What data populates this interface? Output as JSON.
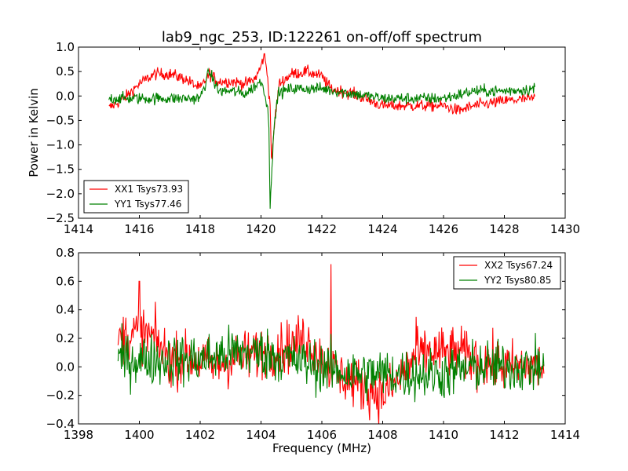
{
  "figure": {
    "title": "lab9_ngc_253, ID:122261 on-off/off spectrum",
    "xlabel": "Frequency (MHz)"
  },
  "chart_data": [
    {
      "type": "line",
      "ylabel": "Power in Kelvin",
      "xlim": [
        1414,
        1430
      ],
      "ylim": [
        -2.5,
        1.0
      ],
      "xticks": [
        "1414",
        "1416",
        "1418",
        "1420",
        "1422",
        "1424",
        "1426",
        "1428",
        "1430"
      ],
      "yticks": [
        "1.0",
        "0.5",
        "0.0",
        "−0.5",
        "−1.0",
        "−1.5",
        "−2.0",
        "−2.5"
      ],
      "legend_position": "lower-left",
      "series": [
        {
          "name": "XX1 Tsys73.93",
          "color": "#ff0000",
          "x_range": [
            1415.0,
            1429.0
          ],
          "points": [
            [
              1415.0,
              -0.25
            ],
            [
              1415.5,
              -0.05
            ],
            [
              1416.0,
              0.25
            ],
            [
              1416.5,
              0.45
            ],
            [
              1417.0,
              0.45
            ],
            [
              1417.5,
              0.35
            ],
            [
              1418.0,
              0.15
            ],
            [
              1418.3,
              0.45
            ],
            [
              1418.6,
              0.3
            ],
            [
              1419.0,
              0.3
            ],
            [
              1419.5,
              0.25
            ],
            [
              1419.8,
              0.35
            ],
            [
              1420.0,
              0.6
            ],
            [
              1420.1,
              0.85
            ],
            [
              1420.2,
              0.5
            ],
            [
              1420.3,
              -0.2
            ],
            [
              1420.35,
              -1.4
            ],
            [
              1420.45,
              -0.5
            ],
            [
              1420.6,
              0.25
            ],
            [
              1421.0,
              0.45
            ],
            [
              1421.5,
              0.5
            ],
            [
              1422.0,
              0.4
            ],
            [
              1422.3,
              0.15
            ],
            [
              1423.0,
              0.05
            ],
            [
              1424.0,
              -0.2
            ],
            [
              1425.0,
              -0.2
            ],
            [
              1426.0,
              -0.2
            ],
            [
              1426.5,
              -0.3
            ],
            [
              1427.0,
              -0.2
            ],
            [
              1428.0,
              -0.1
            ],
            [
              1429.0,
              -0.05
            ]
          ]
        },
        {
          "name": "YY1 Tsys77.46",
          "color": "#008000",
          "x_range": [
            1415.0,
            1429.0
          ],
          "points": [
            [
              1415.0,
              -0.05
            ],
            [
              1416.0,
              -0.05
            ],
            [
              1417.0,
              -0.05
            ],
            [
              1418.0,
              -0.05
            ],
            [
              1418.3,
              0.5
            ],
            [
              1418.6,
              0.1
            ],
            [
              1419.0,
              0.1
            ],
            [
              1419.5,
              0.05
            ],
            [
              1420.0,
              0.3
            ],
            [
              1420.1,
              0.15
            ],
            [
              1420.25,
              -0.4
            ],
            [
              1420.3,
              -2.2
            ],
            [
              1420.4,
              -0.9
            ],
            [
              1420.55,
              0.05
            ],
            [
              1421.0,
              0.15
            ],
            [
              1422.0,
              0.15
            ],
            [
              1423.0,
              0.05
            ],
            [
              1424.0,
              -0.05
            ],
            [
              1425.0,
              -0.05
            ],
            [
              1426.0,
              -0.05
            ],
            [
              1427.0,
              0.1
            ],
            [
              1428.0,
              0.1
            ],
            [
              1429.0,
              0.15
            ]
          ]
        }
      ]
    },
    {
      "type": "line",
      "ylabel": "",
      "xlim": [
        1398,
        1414
      ],
      "ylim": [
        -0.4,
        0.8
      ],
      "xticks": [
        "1398",
        "1400",
        "1402",
        "1404",
        "1406",
        "1408",
        "1410",
        "1412",
        "1414"
      ],
      "yticks": [
        "0.8",
        "0.6",
        "0.4",
        "0.2",
        "0.0",
        "−0.2",
        "−0.4"
      ],
      "legend_position": "upper-right",
      "series": [
        {
          "name": "XX2 Tsys67.24",
          "color": "#ff0000",
          "x_range": [
            1399.3,
            1413.3
          ],
          "points": [
            [
              1399.3,
              0.2
            ],
            [
              1400.0,
              0.25
            ],
            [
              1400.5,
              0.2
            ],
            [
              1401.0,
              0.05
            ],
            [
              1402.0,
              0.05
            ],
            [
              1402.5,
              0.0
            ],
            [
              1403.0,
              0.05
            ],
            [
              1404.0,
              0.1
            ],
            [
              1405.0,
              0.15
            ],
            [
              1405.5,
              0.2
            ],
            [
              1406.0,
              0.05
            ],
            [
              1406.5,
              -0.05
            ],
            [
              1407.0,
              -0.1
            ],
            [
              1407.5,
              -0.15
            ],
            [
              1408.0,
              -0.2
            ],
            [
              1408.5,
              -0.1
            ],
            [
              1409.0,
              0.05
            ],
            [
              1409.5,
              0.1
            ],
            [
              1410.0,
              0.1
            ],
            [
              1410.5,
              0.1
            ],
            [
              1411.0,
              0.05
            ],
            [
              1412.0,
              0.0
            ],
            [
              1413.3,
              0.0
            ]
          ],
          "spikes": [
            [
              1400.0,
              0.6
            ],
            [
              1406.3,
              0.72
            ],
            [
              1409.1,
              0.35
            ]
          ]
        },
        {
          "name": "YY2 Tsys80.85",
          "color": "#008000",
          "x_range": [
            1399.3,
            1413.3
          ],
          "points": [
            [
              1399.3,
              0.05
            ],
            [
              1400.0,
              0.05
            ],
            [
              1401.0,
              0.05
            ],
            [
              1402.0,
              0.05
            ],
            [
              1403.0,
              0.1
            ],
            [
              1404.0,
              0.1
            ],
            [
              1405.0,
              0.05
            ],
            [
              1406.0,
              0.0
            ],
            [
              1407.0,
              -0.05
            ],
            [
              1408.0,
              -0.05
            ],
            [
              1409.0,
              -0.05
            ],
            [
              1410.0,
              -0.05
            ],
            [
              1411.0,
              0.0
            ],
            [
              1412.0,
              0.0
            ],
            [
              1413.3,
              0.0
            ]
          ]
        }
      ]
    }
  ]
}
